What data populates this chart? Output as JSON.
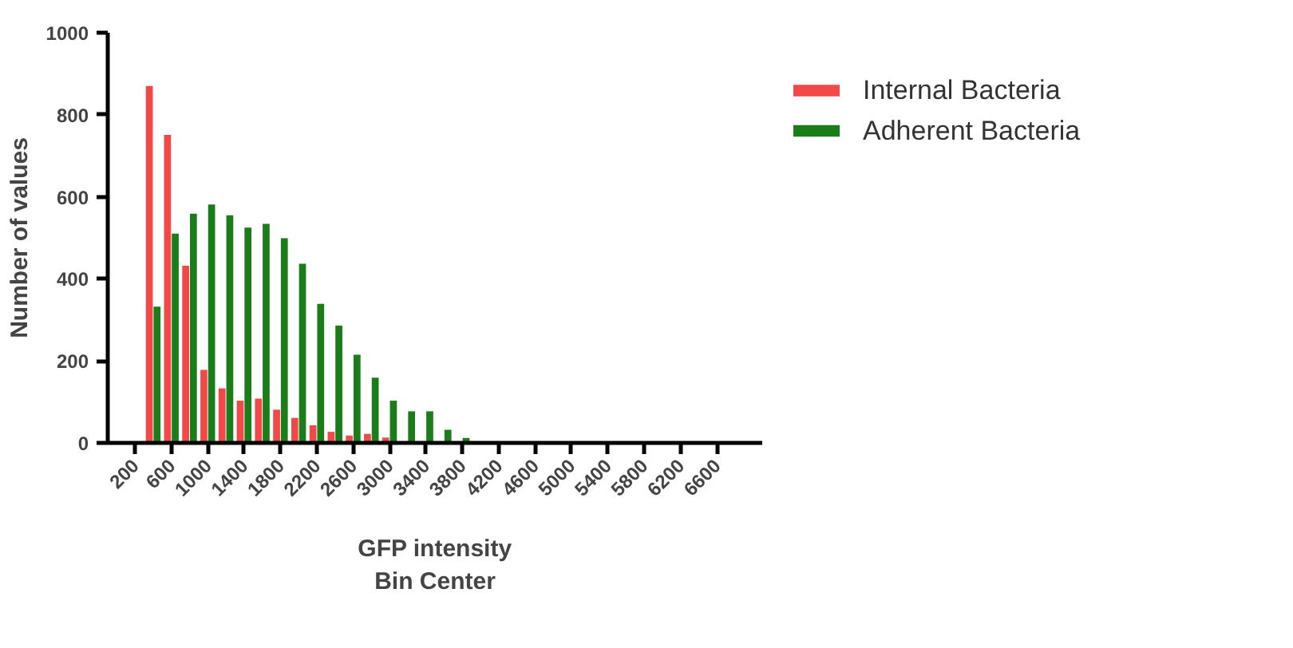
{
  "chart_data": {
    "type": "bar",
    "xlabel": "GFP intensity\nBin Center",
    "ylabel": "Number of values",
    "x": [
      400,
      600,
      800,
      1000,
      1200,
      1400,
      1600,
      1800,
      2000,
      2200,
      2400,
      2600,
      2800,
      3000,
      3200,
      3400,
      3600,
      3800
    ],
    "series": [
      {
        "name": "Internal Bacteria",
        "color": "#f24848",
        "values": [
          870,
          751,
          432,
          178,
          133,
          103,
          108,
          81,
          61,
          43,
          27,
          18,
          22,
          13,
          null,
          null,
          null,
          null
        ]
      },
      {
        "name": "Adherent Bacteria",
        "color": "#1a7d1a",
        "values": [
          332,
          510,
          559,
          581,
          555,
          525,
          534,
          499,
          437,
          339,
          286,
          215,
          159,
          103,
          77,
          77,
          32,
          12
        ]
      }
    ],
    "xlim": [
      -100,
      7100
    ],
    "xticks": [
      200,
      600,
      1000,
      1400,
      1800,
      2200,
      2600,
      3000,
      3400,
      3800,
      4200,
      4600,
      5000,
      5400,
      5800,
      6200,
      6600
    ],
    "ylim": [
      0,
      1000
    ],
    "yticks": [
      0,
      200,
      400,
      600,
      800,
      1000
    ],
    "grid": false,
    "legend": "right"
  }
}
